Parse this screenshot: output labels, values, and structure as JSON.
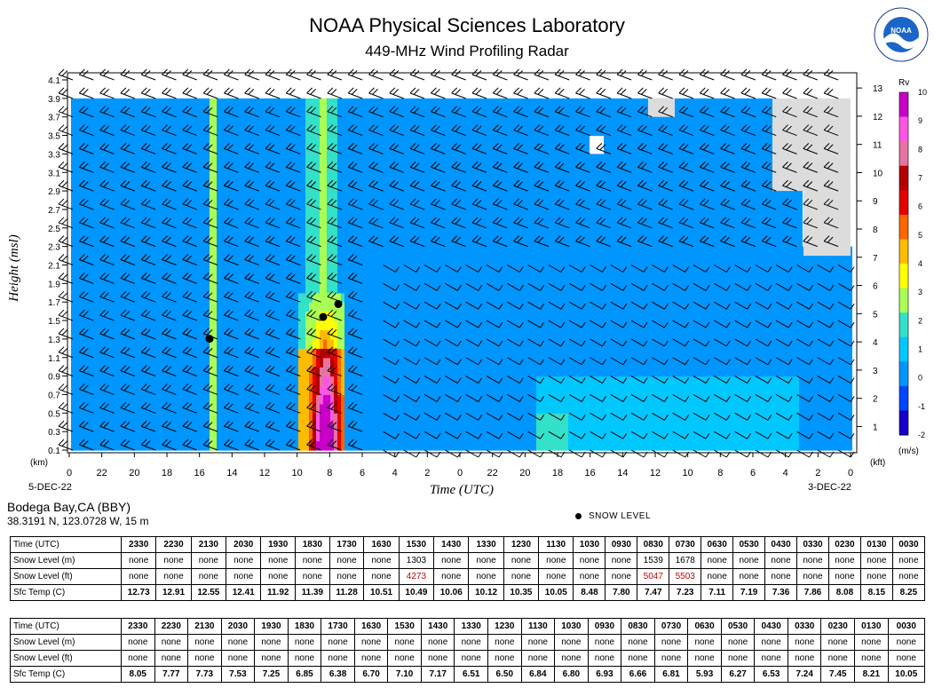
{
  "header": {
    "title": "NOAA Physical Sciences Laboratory",
    "subtitle": "449-MHz Wind Profiling Radar",
    "logo_text": "NOAA",
    "logo_ring_text": "NATIONAL OCEANIC AND ATMOSPHERIC ADMINISTRATION · U.S. DEPARTMENT OF COMMERCE"
  },
  "chart_data": {
    "type": "heatmap",
    "title": "NOAA Physical Sciences Laboratory",
    "subtitle": "449-MHz Wind Profiling Radar",
    "xlabel": "Time (UTC)",
    "ylabel": "Height (msl)",
    "y_unit_left": "(km)",
    "y_unit_right": "(kft)",
    "x_ticks": [
      "0",
      "22",
      "20",
      "18",
      "16",
      "14",
      "12",
      "10",
      "8",
      "6",
      "4",
      "2",
      "0",
      "22",
      "20",
      "18",
      "16",
      "14",
      "12",
      "10",
      "8",
      "6",
      "4",
      "2",
      "0"
    ],
    "x_start_label": "5-DEC-22",
    "x_end_label": "3-DEC-22",
    "y_ticks_km": [
      "0.1",
      "0.3",
      "0.5",
      "0.7",
      "0.9",
      "1.1",
      "1.3",
      "1.5",
      "1.7",
      "1.9",
      "2.1",
      "2.3",
      "2.5",
      "2.7",
      "2.9",
      "3.1",
      "3.3",
      "3.5",
      "3.7",
      "3.9",
      "4.1"
    ],
    "y_ticks_kft": [
      "1",
      "2",
      "3",
      "4",
      "5",
      "6",
      "7",
      "8",
      "9",
      "10",
      "11",
      "12",
      "13"
    ],
    "colorbar": {
      "label": "Rv",
      "unit": "(m/s)",
      "range": [
        -2,
        10
      ],
      "ticks": [
        "10",
        "9",
        "8",
        "7",
        "6",
        "5",
        "4",
        "3",
        "2",
        "1",
        "0",
        "-1",
        "-2"
      ],
      "colors": [
        "#1400c8",
        "#0046ff",
        "#0096ff",
        "#00c8ff",
        "#33e0c8",
        "#aaff55",
        "#ffff00",
        "#ffbb00",
        "#ff6600",
        "#e60000",
        "#b40000",
        "#e673a0",
        "#ff55e6",
        "#c800c8"
      ]
    },
    "snow_level_points": [
      {
        "time_utc": "1530",
        "height_m": 1303
      },
      {
        "time_utc": "0830",
        "height_m": 1539
      },
      {
        "time_utc": "0730",
        "height_m": 1678
      }
    ],
    "legend": "SNOW LEVEL",
    "grid": false
  },
  "site": {
    "name": "Bodega Bay,CA (BBY)",
    "coords": "38.3191 N, 123.0728 W, 15 m"
  },
  "snow_legend": "SNOW LEVEL",
  "tables": [
    {
      "columns": [
        "2330",
        "2230",
        "2130",
        "2030",
        "1930",
        "1830",
        "1730",
        "1630",
        "1530",
        "1430",
        "1330",
        "1230",
        "1130",
        "1030",
        "0930",
        "0830",
        "0730",
        "0630",
        "0530",
        "0430",
        "0330",
        "0230",
        "0130",
        "0030"
      ],
      "rows": [
        {
          "label": "Time (UTC)",
          "values": [
            "2330",
            "2230",
            "2130",
            "2030",
            "1930",
            "1830",
            "1730",
            "1630",
            "1530",
            "1430",
            "1330",
            "1230",
            "1130",
            "1030",
            "0930",
            "0830",
            "0730",
            "0630",
            "0530",
            "0430",
            "0330",
            "0230",
            "0130",
            "0030"
          ]
        },
        {
          "label": "Snow Level (m)",
          "values": [
            "none",
            "none",
            "none",
            "none",
            "none",
            "none",
            "none",
            "none",
            "1303",
            "none",
            "none",
            "none",
            "none",
            "none",
            "none",
            "1539",
            "1678",
            "none",
            "none",
            "none",
            "none",
            "none",
            "none",
            "none"
          ]
        },
        {
          "label": "Snow Level (ft)",
          "values": [
            "none",
            "none",
            "none",
            "none",
            "none",
            "none",
            "none",
            "none",
            "4273",
            "none",
            "none",
            "none",
            "none",
            "none",
            "none",
            "5047",
            "5503",
            "none",
            "none",
            "none",
            "none",
            "none",
            "none",
            "none"
          ]
        },
        {
          "label": "Sfc Temp (C)",
          "values": [
            "12.73",
            "12.91",
            "12.55",
            "12.41",
            "11.92",
            "11.39",
            "11.28",
            "10.51",
            "10.49",
            "10.06",
            "10.12",
            "10.35",
            "10.05",
            "8.48",
            "7.80",
            "7.47",
            "7.23",
            "7.11",
            "7.19",
            "7.36",
            "7.86",
            "8.08",
            "8.15",
            "8.25"
          ]
        }
      ]
    },
    {
      "rows": [
        {
          "label": "Time (UTC)",
          "values": [
            "2330",
            "2230",
            "2130",
            "2030",
            "1930",
            "1830",
            "1730",
            "1630",
            "1530",
            "1430",
            "1330",
            "1230",
            "1130",
            "1030",
            "0930",
            "0830",
            "0730",
            "0630",
            "0530",
            "0430",
            "0330",
            "0230",
            "0130",
            "0030"
          ]
        },
        {
          "label": "Snow Level (m)",
          "values": [
            "none",
            "none",
            "none",
            "none",
            "none",
            "none",
            "none",
            "none",
            "none",
            "none",
            "none",
            "none",
            "none",
            "none",
            "none",
            "none",
            "none",
            "none",
            "none",
            "none",
            "none",
            "none",
            "none",
            "none"
          ]
        },
        {
          "label": "Snow Level (ft)",
          "values": [
            "none",
            "none",
            "none",
            "none",
            "none",
            "none",
            "none",
            "none",
            "none",
            "none",
            "none",
            "none",
            "none",
            "none",
            "none",
            "none",
            "none",
            "none",
            "none",
            "none",
            "none",
            "none",
            "none",
            "none"
          ]
        },
        {
          "label": "Sfc Temp (C)",
          "values": [
            "8.05",
            "7.77",
            "7.73",
            "7.53",
            "7.25",
            "6.85",
            "6.38",
            "6.70",
            "7.10",
            "7.17",
            "6.51",
            "6.50",
            "6.84",
            "6.80",
            "6.93",
            "6.66",
            "6.81",
            "5.93",
            "6.27",
            "6.53",
            "7.24",
            "7.45",
            "8.21",
            "10.05"
          ]
        }
      ]
    }
  ],
  "colors": {
    "highlight_text": "#d00000"
  }
}
